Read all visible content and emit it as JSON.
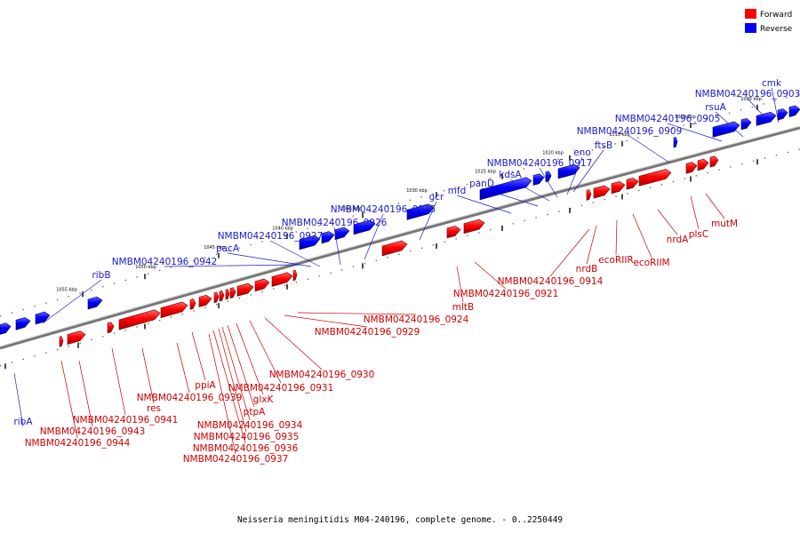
{
  "legend": {
    "forward": {
      "label": "Forward",
      "color": "#ff0000"
    },
    "reverse": {
      "label": "Reverse",
      "color": "#0000ff"
    }
  },
  "caption": "Neisseria meningitidis M04-240196, complete genome. - 0..2250449",
  "scale_labels": [
    "1055 kbp",
    "1050 kbp",
    "1045 kbp",
    "1040 kbp",
    "1035 kbp",
    "1030 kbp",
    "1025 kbp",
    "1020 kbp",
    "1015 kbp",
    "1010 kbp",
    "1005 kbp"
  ],
  "reverse_labels": [
    "ribA",
    "ribB",
    "NMBM04240196_0942",
    "pacA",
    "NMBM04240196_0927",
    "NMBM04240196_0926",
    "NMBM04240196_0925",
    "gcr",
    "mfd",
    "panD",
    "kdsA",
    "NMBM04240196_0917",
    "eno",
    "ftsB",
    "NMBM04240196_0909",
    "NMBM04240196_0905",
    "rsuA",
    "NMBM04240196_0903",
    "cmk"
  ],
  "forward_labels": [
    "NMBM04240196_0944",
    "NMBM04240196_0943",
    "NMBM04240196_0941",
    "res",
    "NMBM04240196_0939",
    "ppiA",
    "NMBM04240196_0937",
    "NMBM04240196_0936",
    "NMBM04240196_0935",
    "NMBM04240196_0934",
    "ptpA",
    "glxK",
    "NMBM04240196_0931",
    "NMBM04240196_0930",
    "NMBM04240196_0929",
    "NMBM04240196_0924",
    "mltB",
    "NMBM04240196_0921",
    "NMBM04240196_0914",
    "nrdB",
    "ecoRIIR",
    "ecoRIIM",
    "nrdA",
    "plsC",
    "mutM"
  ]
}
